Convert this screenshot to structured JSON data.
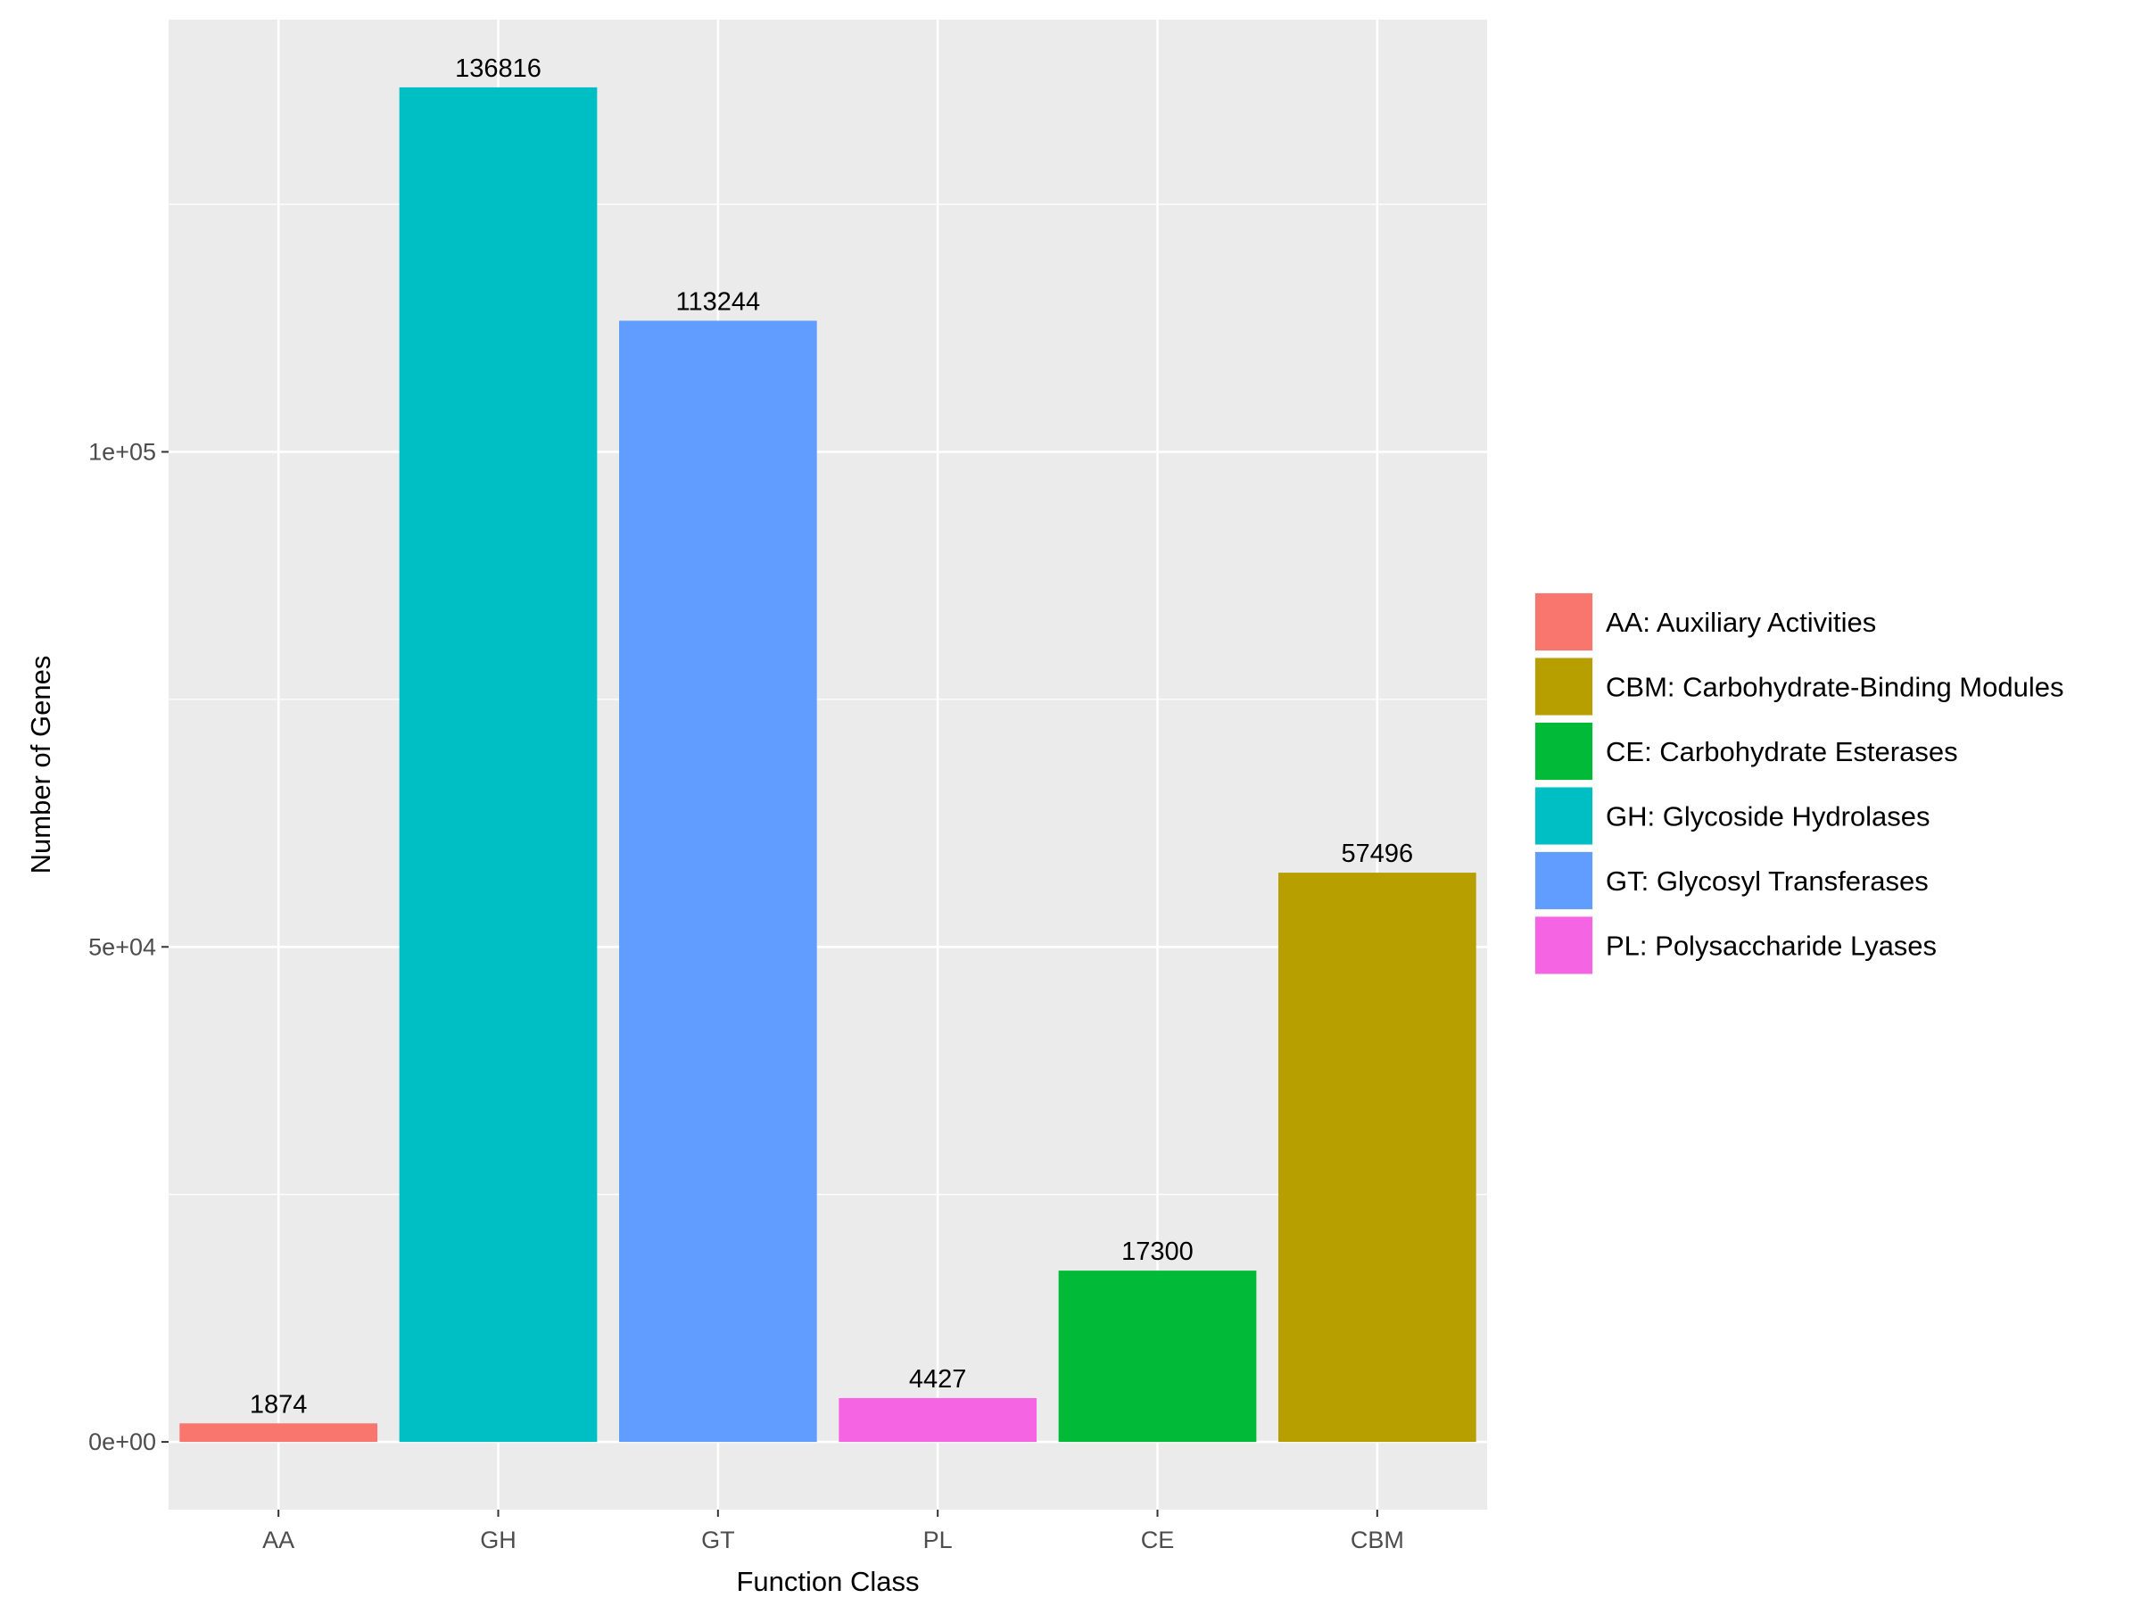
{
  "chart_data": {
    "type": "bar",
    "title": "",
    "xlabel": "Function Class",
    "ylabel": "Number of Genes",
    "categories": [
      "AA",
      "GH",
      "GT",
      "PL",
      "CE",
      "CBM"
    ],
    "values": [
      1874,
      136816,
      113244,
      4427,
      17300,
      57496
    ],
    "value_labels": [
      "1874",
      "136816",
      "113244",
      "4427",
      "17300",
      "57496"
    ],
    "colors": [
      "#F8766D",
      "#00BFC4",
      "#619CFF",
      "#F564E3",
      "#00BA38",
      "#B79F00"
    ],
    "ylim": [
      -6840.8,
      143656.8
    ],
    "yticks": [
      0,
      50000,
      100000
    ],
    "ytick_labels": [
      "0e+00",
      "5e+04",
      "1e+05"
    ],
    "yminor": [
      25000,
      75000,
      125000
    ],
    "grid": true,
    "panel_background": "#EBEBEB",
    "grid_color": "#FFFFFF",
    "legend": {
      "position": "right",
      "entries": [
        {
          "key": "AA",
          "label": "AA: Auxiliary Activities",
          "color": "#F8766D"
        },
        {
          "key": "CBM",
          "label": "CBM: Carbohydrate-Binding Modules",
          "color": "#B79F00"
        },
        {
          "key": "CE",
          "label": "CE: Carbohydrate Esterases",
          "color": "#00BA38"
        },
        {
          "key": "GH",
          "label": "GH: Glycoside Hydrolases",
          "color": "#00BFC4"
        },
        {
          "key": "GT",
          "label": "GT: Glycosyl Transferases",
          "color": "#619CFF"
        },
        {
          "key": "PL",
          "label": "PL: Polysaccharide Lyases",
          "color": "#F564E3"
        }
      ]
    }
  }
}
